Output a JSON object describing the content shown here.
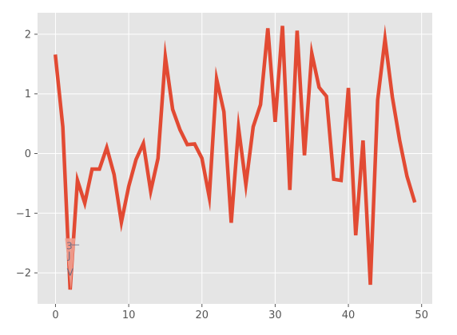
{
  "chart_data": {
    "type": "line",
    "title": "",
    "xlabel": "",
    "ylabel": "",
    "xlim": [
      -2.45,
      51.45
    ],
    "ylim": [
      -2.52,
      2.36
    ],
    "grid": true,
    "legend": "none",
    "style": "ggplot",
    "colors": {
      "line": "#e24a33",
      "highlight": "#f0a090",
      "plot_background": "#e5e5e5",
      "grid": "#ffffff",
      "tick_text": "#555555"
    },
    "x_ticks": [
      0,
      10,
      20,
      30,
      40,
      50
    ],
    "x_tick_labels": [
      "0",
      "10",
      "20",
      "30",
      "40",
      "50"
    ],
    "y_ticks": [
      -2,
      -1,
      0,
      1,
      2
    ],
    "y_tick_labels": [
      "−2",
      "−1",
      "0",
      "1",
      "2"
    ],
    "series": [
      {
        "x": [
          0,
          1,
          2,
          3,
          4,
          5,
          6,
          7,
          8,
          9,
          10,
          11,
          12,
          13,
          14,
          15,
          16,
          17,
          18,
          19,
          20,
          21,
          22,
          23,
          24,
          25,
          26,
          27,
          28,
          29,
          30,
          31,
          32,
          33,
          34,
          35,
          36,
          37,
          38,
          39,
          40,
          41,
          42,
          43,
          44,
          45,
          46,
          47,
          48,
          49
        ],
        "values": [
          1.63,
          0.45,
          -2.28,
          -0.45,
          -0.83,
          -0.26,
          -0.26,
          0.1,
          -0.35,
          -1.15,
          -0.55,
          -0.1,
          0.17,
          -0.63,
          -0.08,
          1.62,
          0.74,
          0.4,
          0.15,
          0.16,
          -0.08,
          -0.73,
          1.25,
          0.7,
          -1.16,
          0.43,
          -0.52,
          0.45,
          0.82,
          2.1,
          0.53,
          2.14,
          -0.61,
          2.06,
          -0.03,
          1.68,
          1.11,
          0.96,
          -0.43,
          -0.45,
          1.1,
          -1.37,
          0.22,
          -2.2,
          0.9,
          1.92,
          0.95,
          0.22,
          -0.38,
          -0.79
        ]
      }
    ],
    "highlight": {
      "x_range": [
        1.3,
        2.7
      ],
      "y_range": [
        -2.3,
        -1.42
      ],
      "glyphs": [
        "3",
        "—",
        "J",
        "V"
      ]
    }
  }
}
